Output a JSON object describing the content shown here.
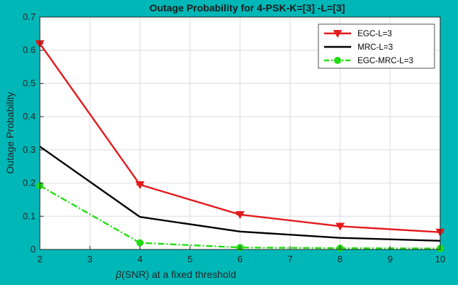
{
  "chart_data": {
    "type": "line",
    "title": "Outage Probability for 4-PSK-K=[3] -L=[3]",
    "xlabel_symbol": "β",
    "xlabel_rest": "(SNR) at a fixed threshold",
    "ylabel": "Outage Probability",
    "xlim": [
      2,
      10
    ],
    "ylim": [
      0,
      0.7
    ],
    "xticks": [
      2,
      3,
      4,
      5,
      6,
      7,
      8,
      9,
      10
    ],
    "yticks": [
      0,
      0.1,
      0.2,
      0.3,
      0.4,
      0.5,
      0.6,
      0.7
    ],
    "xtick_labels": [
      "2",
      "3",
      "4",
      "5",
      "6",
      "7",
      "8",
      "9",
      "10"
    ],
    "ytick_labels": [
      "0",
      "0.1",
      "0.2",
      "0.3",
      "0.4",
      "0.5",
      "0.6",
      "0.7"
    ],
    "grid": true,
    "legend_position": "top-right",
    "x": [
      2,
      4,
      6,
      8,
      10
    ],
    "series": [
      {
        "name": "EGC-L=3",
        "values": [
          0.62,
          0.195,
          0.105,
          0.07,
          0.052
        ],
        "color": "#e31a1c",
        "marker": "triangle-down-cross",
        "line_style": "solid"
      },
      {
        "name": "MRC-L=3",
        "values": [
          0.31,
          0.098,
          0.054,
          0.035,
          0.026
        ],
        "color": "#000000",
        "marker": "none",
        "line_style": "solid"
      },
      {
        "name": "EGC-MRC-L=3",
        "values": [
          0.192,
          0.02,
          0.006,
          0.004,
          0.003
        ],
        "color": "#22dd11",
        "marker": "circle",
        "line_style": "dashdot"
      }
    ]
  }
}
